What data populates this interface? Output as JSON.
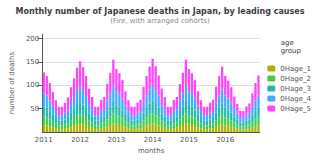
{
  "chart_data": {
    "type": "bar",
    "stacked": true,
    "title": "Monthly number of Japanese deaths in Japan, by leading causes",
    "subtitle": "(Fire, with arranged cohorts)",
    "xlabel": "months",
    "ylabel": "number of deaths",
    "legend_title": "age\ngroup",
    "legend": "right",
    "grid": true,
    "ylim": [
      0,
      210
    ],
    "yticks": [
      50,
      100,
      150,
      200
    ],
    "categories": [
      "2011",
      null,
      null,
      null,
      null,
      null,
      null,
      null,
      null,
      null,
      null,
      null,
      "2012",
      null,
      null,
      null,
      null,
      null,
      null,
      null,
      null,
      null,
      null,
      null,
      "2013",
      null,
      null,
      null,
      null,
      null,
      null,
      null,
      null,
      null,
      null,
      null,
      "2014",
      null,
      null,
      null,
      null,
      null,
      null,
      null,
      null,
      null,
      null,
      null,
      "2015",
      null,
      null,
      null,
      null,
      null,
      null,
      null,
      null,
      null,
      null,
      null,
      "2016",
      null,
      null,
      null,
      null,
      null,
      null,
      null,
      null,
      null,
      null,
      null
    ],
    "series": [
      {
        "name": "0Hage_1",
        "color": "#b0b000",
        "values": [
          15,
          14,
          12,
          10,
          8,
          6,
          6,
          7,
          8,
          10,
          13,
          16,
          17,
          16,
          14,
          11,
          9,
          6,
          6,
          8,
          9,
          12,
          15,
          18,
          16,
          15,
          13,
          10,
          8,
          6,
          6,
          7,
          8,
          11,
          14,
          17,
          18,
          16,
          14,
          11,
          9,
          6,
          6,
          8,
          9,
          12,
          15,
          18,
          16,
          15,
          13,
          10,
          8,
          6,
          6,
          7,
          8,
          11,
          14,
          17,
          14,
          13,
          11,
          9,
          7,
          5,
          5,
          6,
          7,
          9,
          12,
          14
        ]
      },
      {
        "name": "0Hage_2",
        "color": "#44cc44",
        "values": [
          18,
          17,
          15,
          12,
          10,
          8,
          8,
          9,
          11,
          14,
          17,
          20,
          21,
          19,
          17,
          13,
          11,
          8,
          8,
          10,
          11,
          15,
          18,
          22,
          19,
          18,
          16,
          13,
          10,
          8,
          8,
          9,
          10,
          14,
          17,
          20,
          22,
          20,
          17,
          13,
          11,
          8,
          8,
          10,
          11,
          15,
          18,
          22,
          19,
          18,
          16,
          13,
          10,
          8,
          8,
          9,
          10,
          14,
          17,
          20,
          17,
          16,
          14,
          11,
          9,
          7,
          7,
          8,
          9,
          12,
          15,
          17
        ]
      },
      {
        "name": "0Hage_3",
        "color": "#22bbaa",
        "values": [
          22,
          21,
          18,
          15,
          12,
          10,
          10,
          11,
          13,
          17,
          20,
          24,
          26,
          24,
          20,
          16,
          13,
          10,
          10,
          12,
          13,
          18,
          22,
          27,
          23,
          22,
          19,
          15,
          12,
          10,
          10,
          11,
          12,
          17,
          21,
          24,
          27,
          24,
          21,
          16,
          13,
          10,
          10,
          12,
          13,
          18,
          22,
          27,
          23,
          22,
          19,
          15,
          12,
          10,
          10,
          11,
          12,
          17,
          21,
          24,
          21,
          19,
          17,
          13,
          11,
          8,
          8,
          10,
          11,
          15,
          18,
          21
        ]
      },
      {
        "name": "0Hage_4",
        "color": "#44aaff",
        "values": [
          28,
          26,
          23,
          19,
          15,
          12,
          12,
          14,
          16,
          21,
          25,
          30,
          33,
          30,
          26,
          20,
          16,
          12,
          12,
          15,
          16,
          22,
          27,
          33,
          29,
          27,
          24,
          19,
          15,
          12,
          12,
          14,
          15,
          21,
          26,
          30,
          34,
          30,
          26,
          20,
          16,
          12,
          12,
          15,
          16,
          22,
          27,
          33,
          29,
          27,
          24,
          19,
          15,
          12,
          12,
          14,
          15,
          21,
          26,
          30,
          26,
          24,
          21,
          17,
          13,
          10,
          10,
          12,
          13,
          18,
          23,
          26
        ]
      },
      {
        "name": "0Hage_5",
        "color": "#ff44ff",
        "values": [
          45,
          42,
          37,
          30,
          23,
          18,
          18,
          21,
          26,
          34,
          40,
          48,
          55,
          50,
          43,
          33,
          26,
          18,
          18,
          24,
          26,
          36,
          45,
          55,
          48,
          44,
          39,
          30,
          23,
          18,
          18,
          22,
          24,
          34,
          42,
          49,
          56,
          51,
          43,
          33,
          26,
          18,
          18,
          24,
          26,
          36,
          45,
          55,
          48,
          44,
          39,
          30,
          23,
          18,
          18,
          22,
          24,
          34,
          42,
          49,
          42,
          38,
          33,
          26,
          20,
          15,
          15,
          19,
          21,
          29,
          37,
          43
        ]
      }
    ]
  }
}
